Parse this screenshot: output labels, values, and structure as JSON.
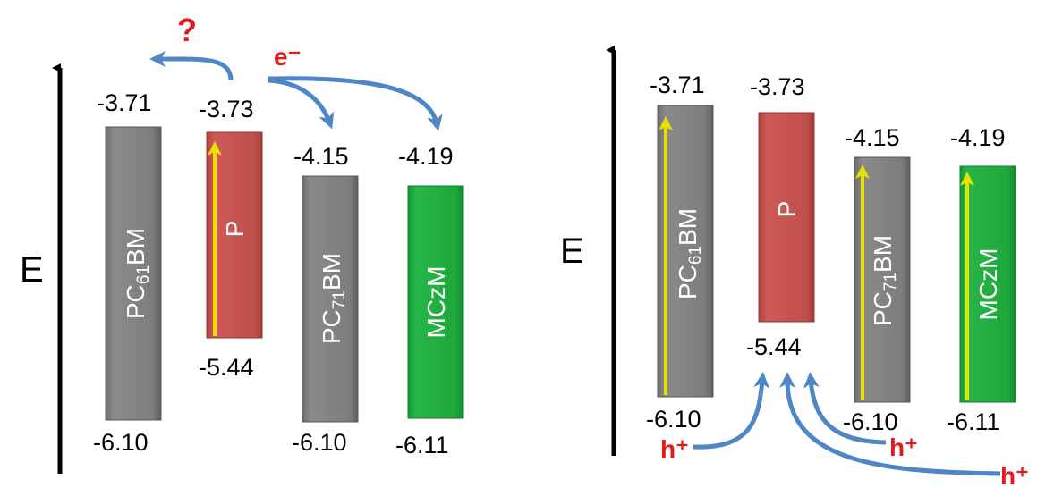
{
  "colors": {
    "gray_bar": "#7f7f7f",
    "red_bar": "#c0504d",
    "green_bar": "#1fa83c",
    "arrow_blue": "#4f86c6",
    "label_red": "#e31a1c",
    "excitation_yellow": "#e8e000"
  },
  "axis": {
    "label": "E"
  },
  "left_diagram": {
    "question_mark": "?",
    "electron_label": "e⁻",
    "materials": [
      {
        "name_main": "PC",
        "name_sub": "61",
        "name_tail": "BM",
        "lumo": "-3.71",
        "homo": "-6.10",
        "color": "gray"
      },
      {
        "name_main": "P",
        "name_sub": "",
        "name_tail": "",
        "lumo": "-3.73",
        "homo": "-5.44",
        "color": "red"
      },
      {
        "name_main": "PC",
        "name_sub": "71",
        "name_tail": "BM",
        "lumo": "-4.15",
        "homo": "-6.10",
        "color": "gray"
      },
      {
        "name_main": "MCzM",
        "name_sub": "",
        "name_tail": "",
        "lumo": "-4.19",
        "homo": "-6.11",
        "color": "green"
      }
    ]
  },
  "right_diagram": {
    "hole_label": "h⁺",
    "materials": [
      {
        "name_main": "PC",
        "name_sub": "61",
        "name_tail": "BM",
        "lumo": "-3.71",
        "homo": "-6.10",
        "color": "gray"
      },
      {
        "name_main": "P",
        "name_sub": "",
        "name_tail": "",
        "lumo": "-3.73",
        "homo": "-5.44",
        "color": "red"
      },
      {
        "name_main": "PC",
        "name_sub": "71",
        "name_tail": "BM",
        "lumo": "-4.15",
        "homo": "-6.10",
        "color": "gray"
      },
      {
        "name_main": "MCzM",
        "name_sub": "",
        "name_tail": "",
        "lumo": "-4.19",
        "homo": "-6.11",
        "color": "green"
      }
    ]
  }
}
